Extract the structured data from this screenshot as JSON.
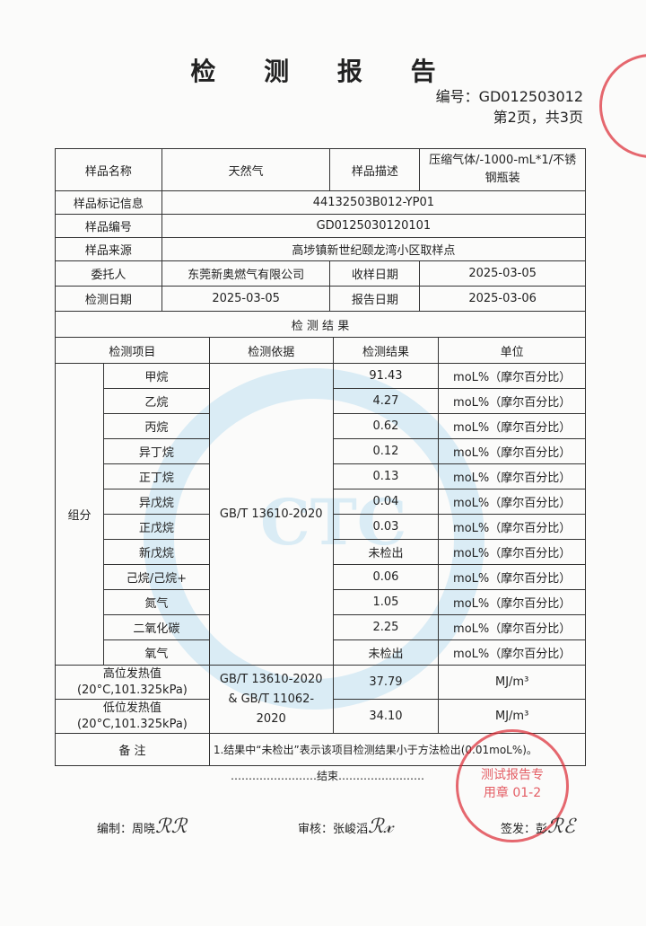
{
  "title": "检 测 报 告",
  "report_no": "编号：GD012503012",
  "page_info": "第2页，共3页",
  "info": {
    "sample_name_label": "样品名称",
    "sample_name": "天然气",
    "sample_desc_label": "样品描述",
    "sample_desc": "压缩气体/-1000-mL*1/不锈钢瓶装",
    "mark_label": "样品标记信息",
    "mark": "44132503B012-YP01",
    "sample_no_label": "样品编号",
    "sample_no": "GD0125030120101",
    "source_label": "样品来源",
    "source": "高埗镇新世纪颐龙湾小区取样点",
    "client_label": "委托人",
    "client": "东莞新奥燃气有限公司",
    "receive_label": "收样日期",
    "receive": "2025-03-05",
    "test_date_label": "检测日期",
    "test_date": "2025-03-05",
    "report_date_label": "报告日期",
    "report_date": "2025-03-06"
  },
  "results_title": "检 测 结 果",
  "headers": [
    "检测项目",
    "检测依据",
    "检测结果",
    "单位"
  ],
  "group_label": "组分",
  "method": "GB/T 13610-2020",
  "components": [
    {
      "name": "甲烷",
      "value": "91.43",
      "unit": "moL%（摩尔百分比）"
    },
    {
      "name": "乙烷",
      "value": "4.27",
      "unit": "moL%（摩尔百分比）"
    },
    {
      "name": "丙烷",
      "value": "0.62",
      "unit": "moL%（摩尔百分比）"
    },
    {
      "name": "异丁烷",
      "value": "0.12",
      "unit": "moL%（摩尔百分比）"
    },
    {
      "name": "正丁烷",
      "value": "0.13",
      "unit": "moL%（摩尔百分比）"
    },
    {
      "name": "异戊烷",
      "value": "0.04",
      "unit": "moL%（摩尔百分比）"
    },
    {
      "name": "正戊烷",
      "value": "0.03",
      "unit": "moL%（摩尔百分比）"
    },
    {
      "name": "新戊烷",
      "value": "未检出",
      "unit": "moL%（摩尔百分比）"
    },
    {
      "name": "己烷/己烷+",
      "value": "0.06",
      "unit": "moL%（摩尔百分比）"
    },
    {
      "name": "氮气",
      "value": "1.05",
      "unit": "moL%（摩尔百分比）"
    },
    {
      "name": "二氧化碳",
      "value": "2.25",
      "unit": "moL%（摩尔百分比）"
    },
    {
      "name": "氧气",
      "value": "未检出",
      "unit": "moL%（摩尔百分比）"
    }
  ],
  "heat": {
    "high_label": "高位发热值",
    "high_cond": "(20°C,101.325kPa)",
    "high_value": "37.79",
    "low_label": "低位发热值",
    "low_cond": "(20°C,101.325kPa)",
    "low_value": "34.10",
    "method": "GB/T 13610-2020 & GB/T 11062-2020",
    "unit": "MJ/m³"
  },
  "remark_label": "备 注",
  "remark": "1.结果中“未检出”表示该项目检测结果小于方法检出(0.01moL%)。",
  "end": "……………………结束……………………",
  "signatures": {
    "compiled": "编制：周晓",
    "reviewed": "审核：张峻滔",
    "issued": "签发：彭"
  },
  "stamp_text": "测试报告专用章 01-2"
}
